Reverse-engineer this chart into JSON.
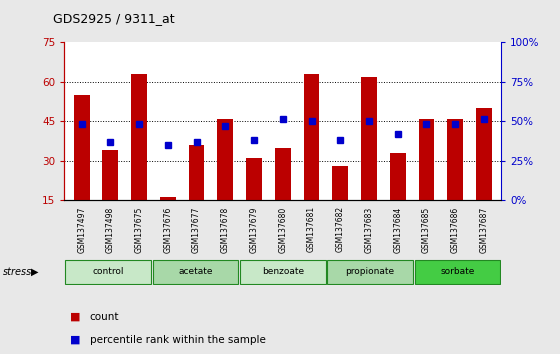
{
  "title": "GDS2925 / 9311_at",
  "samples": [
    "GSM137497",
    "GSM137498",
    "GSM137675",
    "GSM137676",
    "GSM137677",
    "GSM137678",
    "GSM137679",
    "GSM137680",
    "GSM137681",
    "GSM137682",
    "GSM137683",
    "GSM137684",
    "GSM137685",
    "GSM137686",
    "GSM137687"
  ],
  "bar_heights": [
    55,
    34,
    63,
    16,
    36,
    46,
    31,
    35,
    63,
    28,
    62,
    33,
    46,
    46,
    50
  ],
  "blue_values": [
    44,
    37,
    44,
    36,
    37,
    43,
    38,
    46,
    45,
    38,
    45,
    40,
    44,
    44,
    46
  ],
  "y_min": 15,
  "y_max": 75,
  "y_ticks": [
    15,
    30,
    45,
    60,
    75
  ],
  "right_y_ticks": [
    0,
    25,
    50,
    75,
    100
  ],
  "right_y_labels": [
    "0%",
    "25%",
    "50%",
    "75%",
    "100%"
  ],
  "groups": [
    {
      "label": "control",
      "start": 0,
      "end": 2,
      "color": "#c8e8c8"
    },
    {
      "label": "acetate",
      "start": 3,
      "end": 5,
      "color": "#a8d8a8"
    },
    {
      "label": "benzoate",
      "start": 6,
      "end": 8,
      "color": "#c8e8c8"
    },
    {
      "label": "propionate",
      "start": 9,
      "end": 11,
      "color": "#a8d8a8"
    },
    {
      "label": "sorbate",
      "start": 12,
      "end": 14,
      "color": "#44cc44"
    }
  ],
  "bar_color": "#bb0000",
  "blue_color": "#0000cc",
  "stress_label": "stress",
  "legend_count": "count",
  "legend_pct": "percentile rank within the sample",
  "bar_width": 0.55,
  "background_color": "#e8e8e8",
  "plot_bg_color": "#ffffff",
  "grid_color": "#000000",
  "grid_style": ":",
  "grid_lw": 0.7
}
